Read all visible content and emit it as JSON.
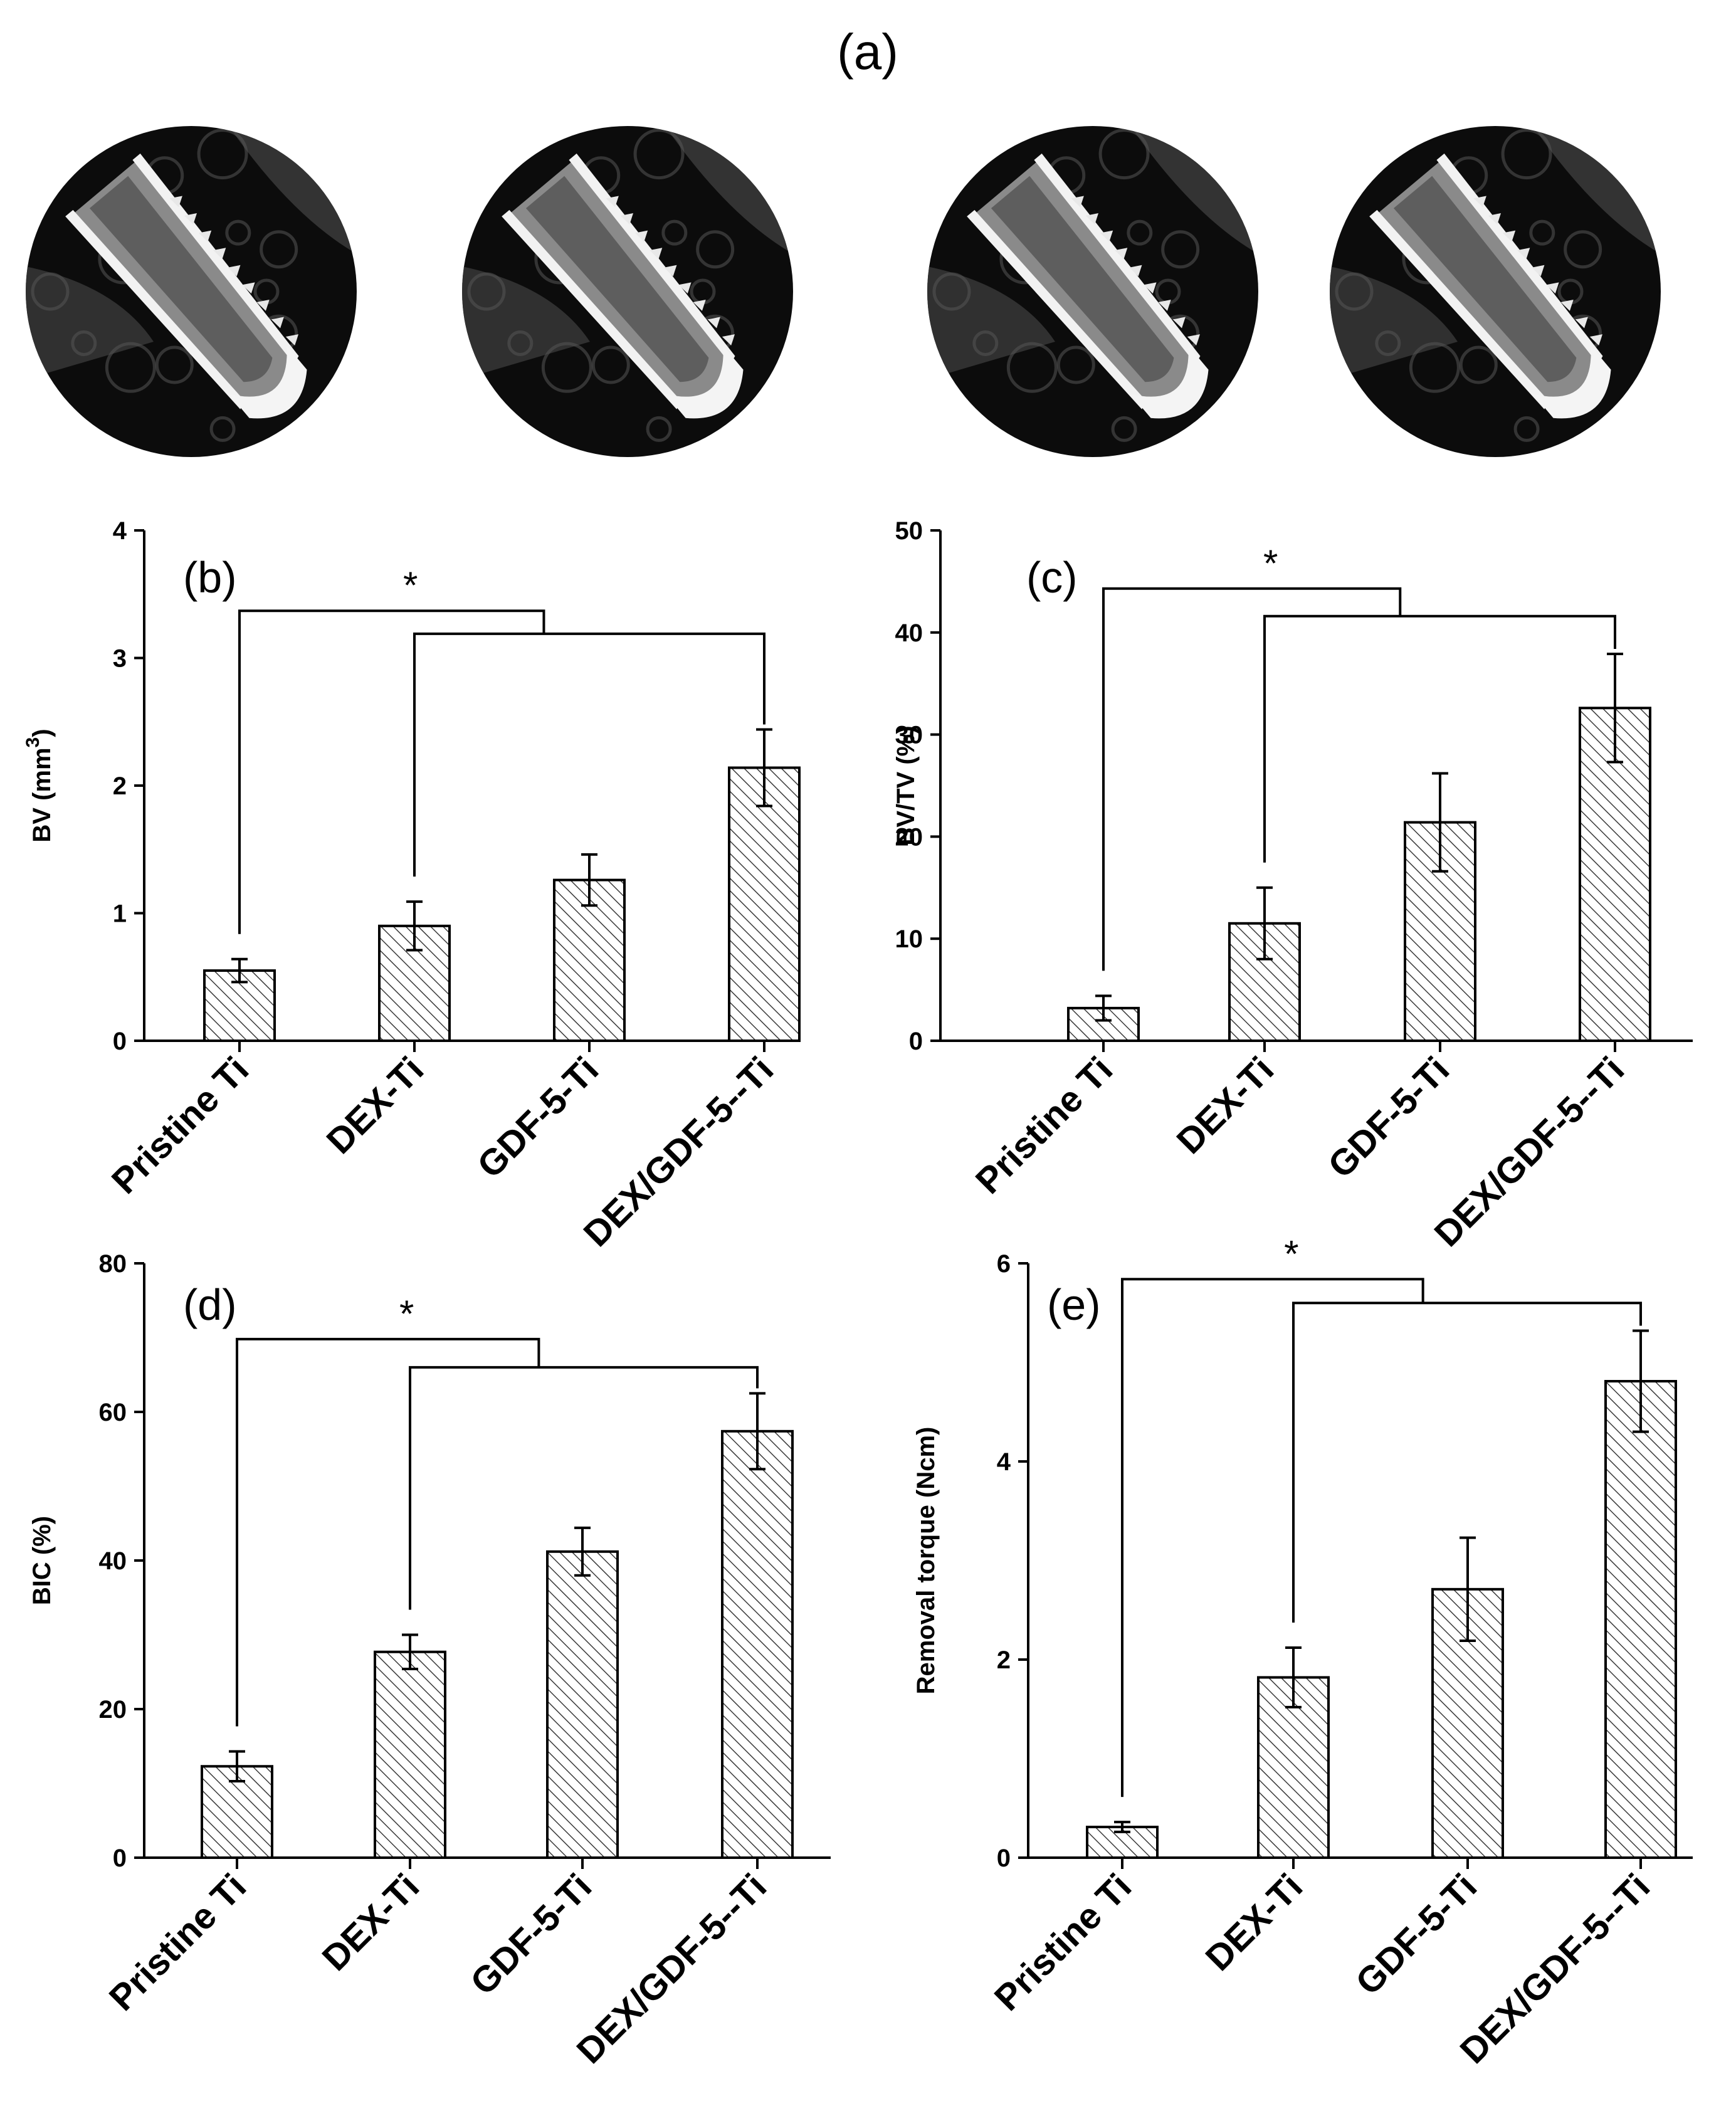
{
  "figure": {
    "panel_a_label": "(a)",
    "images": [
      {
        "name": "ct-image-pristine-ti"
      },
      {
        "name": "ct-image-dex-ti"
      },
      {
        "name": "ct-image-gdf5-ti"
      },
      {
        "name": "ct-image-dex-gdf5-ti"
      }
    ]
  },
  "colors": {
    "axis": "#000000",
    "bar_fill": "#ffffff",
    "hatch": "#3a3a3a",
    "image_bg": "#0a0a0a"
  },
  "chart_data": [
    {
      "type": "bar",
      "panel": "(b)",
      "categories": [
        "Pristine Ti",
        "DEX-Ti",
        "GDF-5-Ti",
        "DEX/GDF-5--Ti"
      ],
      "values": [
        0.55,
        0.9,
        1.26,
        2.14
      ],
      "errors": [
        0.09,
        0.19,
        0.2,
        0.3
      ],
      "ylabel_main": "BV (mm",
      "ylabel_sup": "3",
      "ylabel_end": ")",
      "ylim": [
        0,
        4
      ],
      "yticks": [
        0,
        1,
        2,
        3,
        4
      ],
      "significance": {
        "label": "*",
        "line1_y": 3.37,
        "line2_y": 3.19
      }
    },
    {
      "type": "bar",
      "panel": "(c)",
      "categories": [
        "Pristine Ti",
        "DEX-Ti",
        "GDF-5-Ti",
        "DEX/GDF-5--Ti"
      ],
      "values": [
        3.2,
        11.5,
        21.4,
        32.6
      ],
      "errors": [
        1.2,
        3.5,
        4.8,
        5.3
      ],
      "ylabel_main": "BV/TV (%)",
      "ylim": [
        0,
        50
      ],
      "yticks": [
        0,
        10,
        20,
        30,
        40,
        50
      ],
      "significance": {
        "label": "*",
        "line1_y": 44.3,
        "line2_y": 41.6
      }
    },
    {
      "type": "bar",
      "panel": "(d)",
      "categories": [
        "Pristine Ti",
        "DEX-Ti",
        "GDF-5-Ti",
        "DEX/GDF-5--Ti"
      ],
      "values": [
        12.3,
        27.7,
        41.2,
        57.4
      ],
      "errors": [
        2.0,
        2.3,
        3.2,
        5.1
      ],
      "ylabel_main": "BIC (%)",
      "ylim": [
        0,
        80
      ],
      "yticks": [
        0,
        20,
        40,
        60,
        80
      ],
      "significance": {
        "label": "*",
        "line1_y": 69.8,
        "line2_y": 66.0
      }
    },
    {
      "type": "bar",
      "panel": "(e)",
      "categories": [
        "Pristine Ti",
        "DEX-Ti",
        "GDF-5-Ti",
        "DEX/GDF-5--Ti"
      ],
      "values": [
        0.31,
        1.82,
        2.71,
        4.81
      ],
      "errors": [
        0.05,
        0.3,
        0.52,
        0.51
      ],
      "ylabel_main": "Removal torque (Ncm)",
      "ylim": [
        0,
        6
      ],
      "yticks": [
        0,
        2,
        4,
        6
      ],
      "significance": {
        "label": "*",
        "line1_y": 5.84,
        "line2_y": 5.6
      }
    }
  ]
}
